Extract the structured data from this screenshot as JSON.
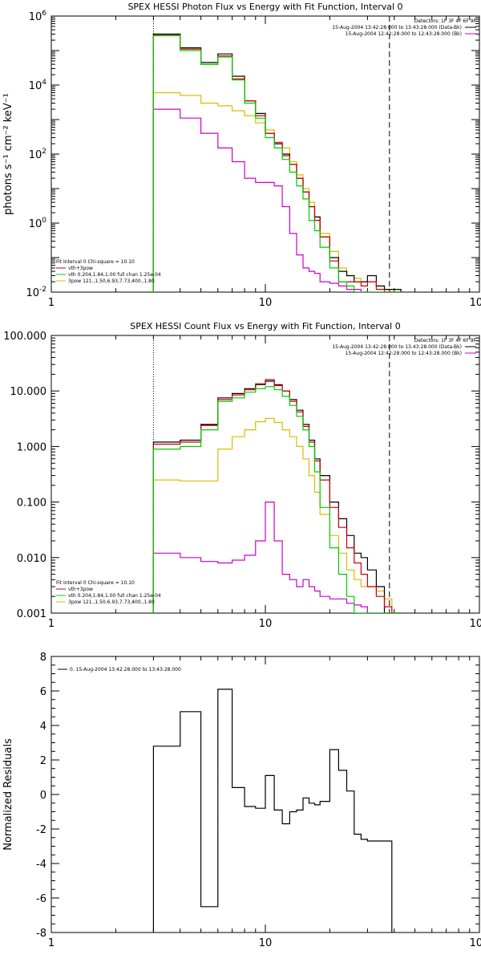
{
  "chart_data": [
    {
      "type": "line",
      "title": "SPEX HESSI Photon Flux vs Energy with Fit Function, Interval 0",
      "ylabel": "photons s⁻¹ cm⁻² keV⁻¹",
      "xscale": "log",
      "yscale": "log",
      "xlim": [
        1,
        100
      ],
      "ylim": [
        0.01,
        1000000
      ],
      "xtick_labels": [
        "1",
        "10",
        "100"
      ],
      "ytick_labels": [
        {
          "v": 1000000,
          "base": "10",
          "exp": "6"
        },
        {
          "v": 10000,
          "base": "10",
          "exp": "4"
        },
        {
          "v": 100,
          "base": "10",
          "exp": "2"
        },
        {
          "v": 1,
          "base": "10",
          "exp": "0"
        },
        {
          "v": 0.01,
          "base": "10",
          "exp": "-2"
        }
      ],
      "vlines": [
        {
          "x": 3,
          "style": "dotted"
        },
        {
          "x": 38,
          "style": "dashed"
        }
      ],
      "info": {
        "detectors": "Detectors: 1F 3F 4F 6F 9F",
        "line1": "15-Aug-2004 13:42:28.000 to 13:43:28.000 (Data-Bk)",
        "line2": "15-Aug-2004 12:42:28.000 to 12:43:28.000 (Bk)"
      },
      "fit_legend": [
        "Fit Interval  0    Chi-square = 10.10",
        "vth+3pow",
        "vth 0.204,1.84,1.00  full chan 1.25e-04",
        "3pow 121.,1.50,6.93,7.73,400.,1.80"
      ],
      "edges": [
        3,
        4,
        5,
        6,
        7,
        8,
        9,
        10,
        11,
        12,
        13,
        14,
        15,
        16,
        17,
        18,
        20,
        22,
        24,
        26,
        28,
        30,
        33,
        36,
        39,
        43
      ],
      "series": [
        {
          "name": "Data-Bk",
          "color": "#000000",
          "values": [
            300000,
            120000,
            45000,
            80000,
            18000,
            3500,
            1500,
            400,
            200,
            100,
            50,
            20,
            8,
            3,
            1.5,
            0.4,
            0.1,
            0.04,
            0.03,
            0.02,
            0.02,
            0.03,
            0.015,
            0.012,
            0.012
          ]
        },
        {
          "name": "vth+3pow",
          "color": "#cc0000",
          "values": [
            280000,
            110000,
            40000,
            70000,
            15000,
            3500,
            1300,
            400,
            220,
            90,
            50,
            20,
            8,
            3,
            1.2,
            0.4,
            0.08,
            0.02,
            0.02,
            0.02,
            0.015,
            0.02,
            0.012,
            0.01,
            0.01
          ]
        },
        {
          "name": "vth",
          "color": "#00cc00",
          "values": [
            270000,
            100000,
            40000,
            65000,
            14000,
            3000,
            1100,
            300,
            150,
            70,
            30,
            12,
            5,
            1.2,
            0.6,
            0.2,
            0.05,
            0.02,
            0.015,
            0.01,
            0.008,
            0.006,
            0.005,
            0.004,
            0.004
          ]
        },
        {
          "name": "3pow",
          "color": "#ddbb00",
          "values": [
            6000,
            5000,
            3000,
            2500,
            1800,
            1300,
            800,
            500,
            200,
            150,
            60,
            25,
            10,
            4,
            1.5,
            0.5,
            0.15,
            0.05,
            0.03,
            0.025,
            0.02,
            0.02,
            0.015,
            0.012,
            0.012
          ]
        },
        {
          "name": "Bk",
          "color": "#cc00cc",
          "values": [
            2000,
            1100,
            400,
            150,
            60,
            20,
            15,
            15,
            12,
            3,
            0.5,
            0.12,
            0.05,
            0.04,
            0.035,
            0.02,
            0.018,
            0.015,
            0.012,
            0.012,
            0.01,
            0.01,
            0.01,
            0.01,
            0.01
          ]
        }
      ]
    },
    {
      "type": "line",
      "title": "SPEX HESSI Count Flux vs Energy with Fit Function, Interval 0",
      "ylabel": "",
      "xscale": "log",
      "yscale": "log",
      "xlim": [
        1,
        100
      ],
      "ylim": [
        0.001,
        100
      ],
      "xtick_labels": [
        "1",
        "10",
        "100"
      ],
      "ytick_labels": [
        {
          "v": 100,
          "text": "100.000"
        },
        {
          "v": 10,
          "text": "10.000"
        },
        {
          "v": 1,
          "text": "1.000"
        },
        {
          "v": 0.1,
          "text": "0.100"
        },
        {
          "v": 0.01,
          "text": "0.010"
        },
        {
          "v": 0.001,
          "text": "0.001"
        }
      ],
      "vlines": [
        {
          "x": 3,
          "style": "dotted"
        },
        {
          "x": 38,
          "style": "dashed"
        }
      ],
      "info": {
        "detectors": "Detectors: 1F 3F 4F 6F 9F",
        "line1": "15-Aug-2004 13:42:28.000 to 13:43:28.000 (Data-Bk)",
        "line2": "15-Aug-2004 12:42:28.000 to 12:43:28.000 (Bk)"
      },
      "fit_legend": [
        "Fit Interval  0    Chi-square = 10.10",
        "vth+3pow",
        "vth 0.204,1.84,1.00  full chan 1.25e-04",
        "3pow 121.,1.50,6.93,7.73,400.,1.80"
      ],
      "edges": [
        3,
        4,
        5,
        6,
        7,
        8,
        9,
        10,
        11,
        12,
        13,
        14,
        15,
        16,
        17,
        18,
        20,
        22,
        24,
        26,
        28,
        30,
        33,
        36,
        39,
        43
      ],
      "series": [
        {
          "name": "Data-Bk",
          "color": "#000000",
          "values": [
            1.2,
            1.3,
            2.5,
            7.5,
            9,
            11,
            13,
            15,
            13,
            10,
            7,
            4.5,
            2.5,
            1.3,
            0.6,
            0.3,
            0.1,
            0.05,
            0.025,
            0.012,
            0.01,
            0.006,
            0.003,
            0.001,
            0.001
          ]
        },
        {
          "name": "vth+3pow",
          "color": "#cc0000",
          "values": [
            1.1,
            1.2,
            2.4,
            7,
            8.5,
            10.5,
            13.5,
            16,
            12.5,
            10,
            6.5,
            4.2,
            2.3,
            1.2,
            0.55,
            0.25,
            0.08,
            0.035,
            0.015,
            0.008,
            0.005,
            0.003,
            0.002,
            0.0013,
            0.001
          ]
        },
        {
          "name": "vth",
          "color": "#00cc00",
          "values": [
            0.9,
            1.0,
            2.0,
            6.5,
            7.5,
            9.5,
            11,
            12,
            10.5,
            8,
            5.5,
            3.5,
            2,
            1,
            0.35,
            0.08,
            0.015,
            0.005,
            0.002,
            0.001,
            0.001,
            0.001,
            0.001,
            0.001,
            0.001
          ]
        },
        {
          "name": "3pow",
          "color": "#ddbb00",
          "values": [
            0.25,
            0.24,
            0.24,
            0.9,
            1.5,
            2,
            2.8,
            3.2,
            2.7,
            2,
            1.5,
            1,
            0.6,
            0.3,
            0.15,
            0.06,
            0.025,
            0.012,
            0.006,
            0.004,
            0.003,
            0.003,
            0.0025,
            0.0018,
            0.001
          ]
        },
        {
          "name": "Bk",
          "color": "#cc00cc",
          "values": [
            0.012,
            0.01,
            0.0085,
            0.008,
            0.009,
            0.011,
            0.02,
            0.1,
            0.02,
            0.005,
            0.004,
            0.003,
            0.004,
            0.003,
            0.0025,
            0.002,
            0.0018,
            0.0018,
            0.0015,
            0.0014,
            0.0013,
            0.001,
            0.001,
            0.001,
            0.001
          ]
        }
      ]
    },
    {
      "type": "line",
      "title": "",
      "ylabel": "Normalized Residuals",
      "xscale": "log",
      "yscale": "linear",
      "xlim": [
        1,
        100
      ],
      "ylim": [
        -8,
        8
      ],
      "xtick_labels": [
        "1",
        "10",
        "100"
      ],
      "ytick_labels": [
        {
          "v": 8,
          "text": "8"
        },
        {
          "v": 6,
          "text": "6"
        },
        {
          "v": 4,
          "text": "4"
        },
        {
          "v": 2,
          "text": "2"
        },
        {
          "v": 0,
          "text": "0"
        },
        {
          "v": -2,
          "text": "-2"
        },
        {
          "v": -4,
          "text": "-4"
        },
        {
          "v": -6,
          "text": "-6"
        },
        {
          "v": -8,
          "text": "-8"
        }
      ],
      "legend": "0. 15-Aug-2004 13:42:28.000 to 13:43:28.000",
      "edges": [
        3,
        4,
        5,
        6,
        7,
        8,
        9,
        10,
        11,
        12,
        13,
        14,
        15,
        16,
        17,
        18,
        20,
        22,
        24,
        26,
        28,
        30,
        33,
        36,
        39
      ],
      "series": [
        {
          "name": "0. 15-Aug-2004 13:42:28.000 to 13:43:28.000",
          "color": "#000000",
          "values": [
            2.8,
            4.8,
            -6.5,
            6.1,
            0.4,
            -0.7,
            -0.8,
            1.1,
            -0.9,
            -1.7,
            -1.0,
            -0.9,
            -0.2,
            -0.5,
            -0.6,
            -0.4,
            2.6,
            1.4,
            0.2,
            -2.3,
            -2.6,
            -2.7,
            -2.7,
            -2.7
          ]
        }
      ]
    }
  ]
}
